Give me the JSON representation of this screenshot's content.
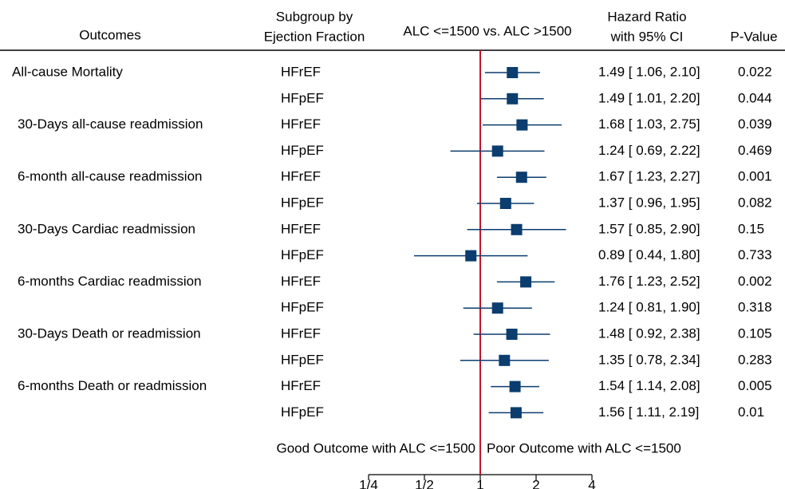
{
  "chart_data": {
    "type": "forest",
    "headers": {
      "outcomes": "Outcomes",
      "subgroup": [
        "Subgroup by",
        "Ejection Fraction"
      ],
      "comparison": "ALC <=1500 vs. ALC >1500",
      "hr": [
        "Hazard Ratio",
        "with 95% CI"
      ],
      "p": "P-Value"
    },
    "color": "#0b3d6e",
    "ref_color": "#c0162c",
    "log_scale": true,
    "xlim": [
      0.25,
      4
    ],
    "xticks": [
      {
        "value": 0.25,
        "label": "1/4"
      },
      {
        "value": 0.5,
        "label": "1/2"
      },
      1,
      2,
      4
    ],
    "reference": 1,
    "left_label": "Good Outcome with ALC <=1500",
    "right_label": "Poor Outcome with ALC <=1500",
    "rows": [
      {
        "outcome": "All-cause Mortality",
        "subgroup": "HFrEF",
        "hr": 1.49,
        "lower": 1.06,
        "upper": 2.1,
        "ci_label": "1.49 [ 1.06, 2.10]",
        "p": "0.022"
      },
      {
        "outcome": null,
        "subgroup": "HFpEF",
        "hr": 1.49,
        "lower": 1.01,
        "upper": 2.2,
        "ci_label": "1.49 [ 1.01, 2.20]",
        "p": "0.044"
      },
      {
        "outcome": "30-Days all-cause readmission",
        "subgroup": "HFrEF",
        "hr": 1.68,
        "lower": 1.03,
        "upper": 2.75,
        "ci_label": "1.68 [ 1.03, 2.75]",
        "p": "0.039"
      },
      {
        "outcome": null,
        "subgroup": "HFpEF",
        "hr": 1.24,
        "lower": 0.69,
        "upper": 2.22,
        "ci_label": "1.24 [ 0.69, 2.22]",
        "p": "0.469"
      },
      {
        "outcome": "6-month all-cause readmission",
        "subgroup": "HFrEF",
        "hr": 1.67,
        "lower": 1.23,
        "upper": 2.27,
        "ci_label": "1.67 [ 1.23, 2.27]",
        "p": "0.001"
      },
      {
        "outcome": null,
        "subgroup": "HFpEF",
        "hr": 1.37,
        "lower": 0.96,
        "upper": 1.95,
        "ci_label": "1.37 [ 0.96, 1.95]",
        "p": "0.082"
      },
      {
        "outcome": "30-Days Cardiac readmission",
        "subgroup": "HFrEF",
        "hr": 1.57,
        "lower": 0.85,
        "upper": 2.9,
        "ci_label": "1.57 [ 0.85, 2.90]",
        "p": "0.15"
      },
      {
        "outcome": null,
        "subgroup": "HFpEF",
        "hr": 0.89,
        "lower": 0.44,
        "upper": 1.8,
        "ci_label": "0.89 [ 0.44, 1.80]",
        "p": "0.733"
      },
      {
        "outcome": "6-months Cardiac readmission",
        "subgroup": "HFrEF",
        "hr": 1.76,
        "lower": 1.23,
        "upper": 2.52,
        "ci_label": "1.76 [ 1.23, 2.52]",
        "p": "0.002"
      },
      {
        "outcome": null,
        "subgroup": "HFpEF",
        "hr": 1.24,
        "lower": 0.81,
        "upper": 1.9,
        "ci_label": "1.24 [ 0.81, 1.90]",
        "p": "0.318"
      },
      {
        "outcome": "30-Days Death or readmission",
        "subgroup": "HFrEF",
        "hr": 1.48,
        "lower": 0.92,
        "upper": 2.38,
        "ci_label": "1.48 [ 0.92, 2.38]",
        "p": "0.105"
      },
      {
        "outcome": null,
        "subgroup": "HFpEF",
        "hr": 1.35,
        "lower": 0.78,
        "upper": 2.34,
        "ci_label": "1.35 [ 0.78, 2.34]",
        "p": "0.283"
      },
      {
        "outcome": "6-months Death or readmission",
        "subgroup": "HFrEF",
        "hr": 1.54,
        "lower": 1.14,
        "upper": 2.08,
        "ci_label": "1.54 [ 1.14, 2.08]",
        "p": "0.005"
      },
      {
        "outcome": null,
        "subgroup": "HFpEF",
        "hr": 1.56,
        "lower": 1.11,
        "upper": 2.19,
        "ci_label": "1.56 [ 1.11, 2.19]",
        "p": "0.01"
      }
    ]
  }
}
